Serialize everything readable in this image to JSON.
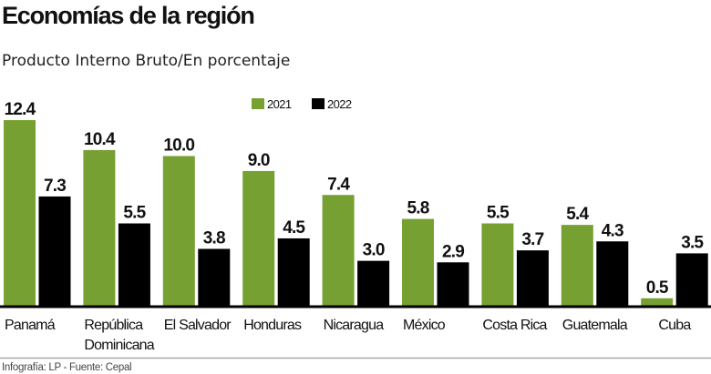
{
  "chart_data": {
    "type": "bar",
    "title": "Economías de la región",
    "subtitle": "Producto Interno Bruto/En porcentaje",
    "categories": [
      "Panamá",
      [
        "República",
        "Dominicana"
      ],
      "El Salvador",
      "Honduras",
      "Nicaragua",
      "México",
      "Costa Rica",
      "Guatemala",
      "Cuba"
    ],
    "series": [
      {
        "name": "2021",
        "color": "#77a033",
        "values": [
          12.4,
          10.4,
          10.0,
          9.0,
          7.4,
          5.8,
          5.5,
          5.4,
          0.5
        ]
      },
      {
        "name": "2022",
        "color": "#000000",
        "values": [
          7.3,
          5.5,
          3.8,
          4.5,
          3.0,
          2.9,
          3.7,
          4.3,
          3.5
        ]
      }
    ],
    "ylim": [
      0,
      12.4
    ],
    "grid": false,
    "legend": "top-center",
    "footer": "Infografía: LP - Fuente: Cepal"
  }
}
